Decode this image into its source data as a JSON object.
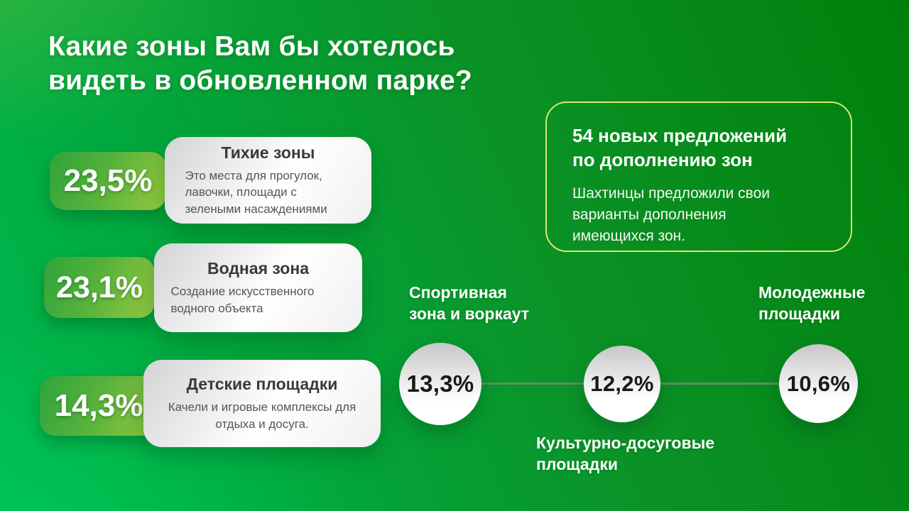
{
  "header": {
    "title_line1": "Какие зоны Вам бы хотелось",
    "title_line2": "видеть в обновленном парке?"
  },
  "zones": [
    {
      "percent": "23,5%",
      "name": "Тихие зоны",
      "description": "Это места для прогулок, лавочки, площади с зелеными насаждениями"
    },
    {
      "percent": "23,1%",
      "name": "Водная зона",
      "description": "Создание искусственного водного объекта"
    },
    {
      "percent": "14,3%",
      "name": "Детские площадки",
      "description": "Качели и игровые комплексы для отдыха и досуга."
    }
  ],
  "callout": {
    "title_line1": "54 новых предложений",
    "title_line2": "по дополнению зон",
    "body": "Шахтинцы предложили свои варианты дополнения имеющихся зон."
  },
  "circles": [
    {
      "percent": "13,3%",
      "label": "Спортивная зона и воркаут",
      "label_position": "top"
    },
    {
      "percent": "12,2%",
      "label": "Культурно-досуговые площадки",
      "label_position": "bottom"
    },
    {
      "percent": "10,6%",
      "label": "Молодежные площадки",
      "label_position": "top"
    }
  ],
  "colors": {
    "background_dark": "#00800b",
    "background_bright": "#00b951",
    "badge_gradient_start": "#2fa43b",
    "badge_gradient_end": "#95c93e",
    "callout_border": "#d6e96b",
    "connector_line": "#628c62",
    "card_title_text": "#3a3a3c",
    "card_body_text": "#55555a",
    "circle_text": "#191919"
  },
  "chart_data": {
    "type": "bar",
    "title": "Какие зоны Вам бы хотелось видеть в обновленном парке?",
    "categories": [
      "Тихие зоны",
      "Водная зона",
      "Детские площадки",
      "Спортивная зона и воркаут",
      "Культурно-досуговые площадки",
      "Молодежные площадки"
    ],
    "values": [
      23.5,
      23.1,
      14.3,
      13.3,
      12.2,
      10.6
    ],
    "unit": "%",
    "annotation": "54 новых предложений по дополнению зон — Шахтинцы предложили свои варианты дополнения имеющихся зон."
  }
}
